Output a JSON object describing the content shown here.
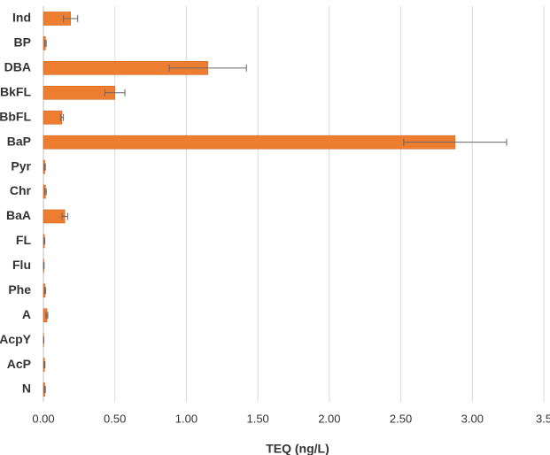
{
  "chart_data": {
    "type": "bar",
    "orientation": "horizontal",
    "x_label": "TEQ (ng/L)",
    "categories": [
      "Ind",
      "BP",
      "DBA",
      "BkFL",
      "BbFL",
      "BaP",
      "Pyr",
      "Chr",
      "BaA",
      "FL",
      "Flu",
      "Phe",
      "A",
      "AcpY",
      "AcP",
      "N"
    ],
    "values": [
      0.19,
      0.015,
      1.15,
      0.5,
      0.13,
      2.88,
      0.01,
      0.015,
      0.15,
      0.007,
      0.003,
      0.012,
      0.025,
      0.002,
      0.008,
      0.01
    ],
    "errors": [
      0.05,
      0.005,
      0.27,
      0.07,
      0.01,
      0.36,
      0.004,
      0.005,
      0.02,
      0.003,
      0.002,
      0.004,
      0.006,
      0.001,
      0.003,
      0.004
    ],
    "color": "#ed7d31",
    "xlim": [
      0,
      3.5
    ],
    "xticks": [
      {
        "value": 0,
        "label": "0.00"
      },
      {
        "value": 0.5,
        "label": "0.50"
      },
      {
        "value": 1,
        "label": "1.00"
      },
      {
        "value": 1.5,
        "label": "1.50"
      },
      {
        "value": 2,
        "label": "2.00"
      },
      {
        "value": 2.5,
        "label": "2.50"
      },
      {
        "value": 3,
        "label": "3.00"
      },
      {
        "value": 3.5,
        "label": "3.5"
      }
    ],
    "grid": true
  }
}
